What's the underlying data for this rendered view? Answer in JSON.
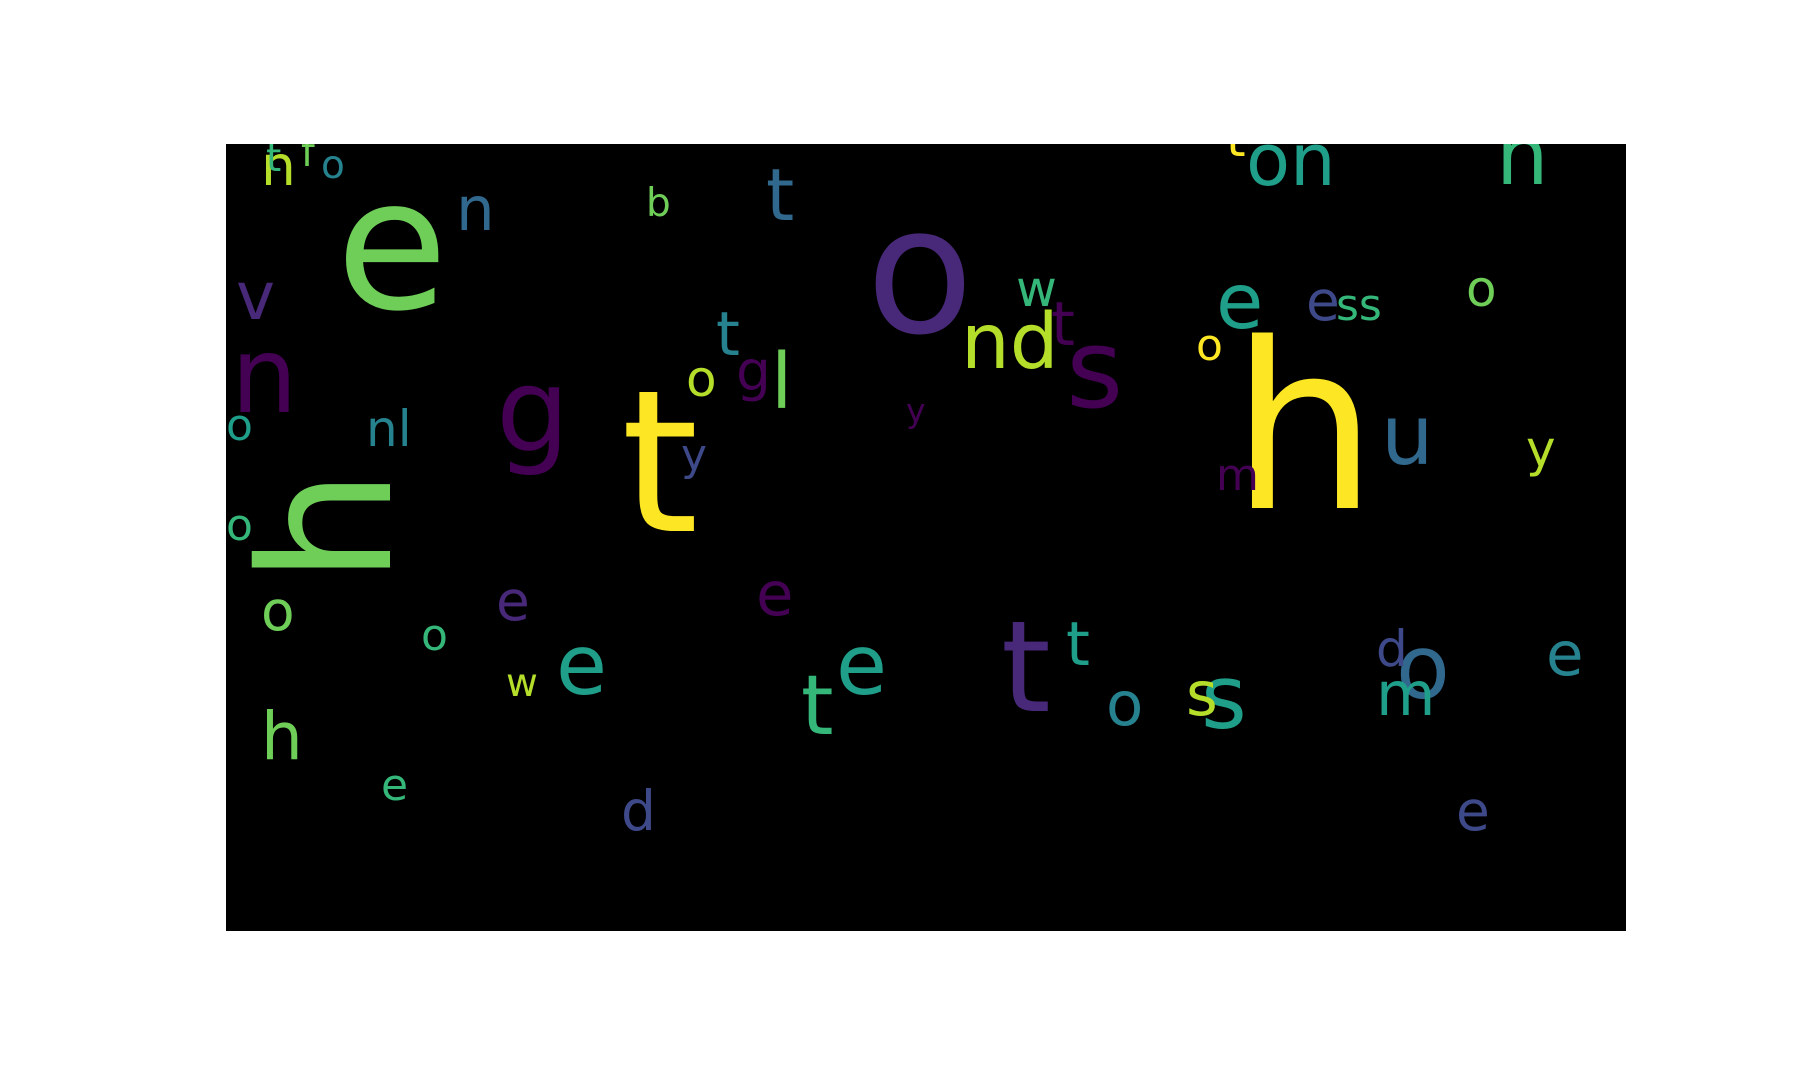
{
  "palette": {
    "background": "#000000",
    "page": "#ffffff",
    "colors": [
      "#440154",
      "#482878",
      "#3e4989",
      "#31688e",
      "#26828e",
      "#1f9e89",
      "#35b779",
      "#6ece58",
      "#b5de2b",
      "#fde725"
    ]
  },
  "words": [
    {
      "t": "h",
      "c": 7,
      "rot": true
    },
    {
      "t": "e",
      "c": 7
    },
    {
      "t": "t",
      "c": 9
    },
    {
      "t": "o",
      "c": 1
    },
    {
      "t": "h",
      "c": 9
    },
    {
      "t": "t",
      "c": 1
    },
    {
      "t": "s",
      "c": 0
    },
    {
      "t": "g",
      "c": 0
    },
    {
      "t": "n",
      "c": 0
    },
    {
      "t": "e",
      "c": 5
    },
    {
      "t": "s",
      "c": 5
    },
    {
      "t": "o",
      "c": 3
    },
    {
      "t": "u",
      "c": 3
    },
    {
      "t": "e",
      "c": 5
    },
    {
      "t": "n",
      "c": 6
    },
    {
      "t": "on",
      "c": 5
    },
    {
      "t": "t",
      "c": 3
    },
    {
      "t": "n",
      "c": 8
    },
    {
      "t": "t",
      "c": 0
    },
    {
      "t": "nd",
      "c": 8
    },
    {
      "t": "e",
      "c": 2
    },
    {
      "t": "e",
      "c": 5
    },
    {
      "t": "l",
      "c": 7
    },
    {
      "t": "t",
      "c": 6
    },
    {
      "t": "e",
      "c": 4
    },
    {
      "t": "t",
      "c": 5
    },
    {
      "t": "o",
      "c": 4
    },
    {
      "t": "m",
      "c": 5
    },
    {
      "t": "n",
      "c": 3
    },
    {
      "t": "s",
      "c": 8
    },
    {
      "t": "d",
      "c": 2
    },
    {
      "t": "e",
      "c": 2
    },
    {
      "t": "e",
      "c": 0
    },
    {
      "t": "e",
      "c": 1
    },
    {
      "t": "g",
      "c": 0
    },
    {
      "t": "nl",
      "c": 4
    },
    {
      "t": "v",
      "c": 1
    },
    {
      "t": "t",
      "c": 4
    },
    {
      "t": "o",
      "c": 5
    },
    {
      "t": "o",
      "c": 6
    },
    {
      "t": "o",
      "c": 6
    },
    {
      "t": "e",
      "c": 6
    },
    {
      "t": "o",
      "c": 7
    },
    {
      "t": "w",
      "c": 8
    },
    {
      "t": "h",
      "c": 7
    },
    {
      "t": "f",
      "c": 7
    },
    {
      "t": "o",
      "c": 4
    },
    {
      "t": "t",
      "c": 6
    },
    {
      "t": "w",
      "c": 6
    },
    {
      "t": "m",
      "c": 0
    },
    {
      "t": "d",
      "c": 2
    },
    {
      "t": "ss",
      "c": 6
    },
    {
      "t": "y",
      "c": 8
    },
    {
      "t": "o",
      "c": 8
    },
    {
      "t": "y",
      "c": 2
    },
    {
      "t": "o",
      "c": 7
    },
    {
      "t": "t",
      "c": 9
    },
    {
      "t": "o",
      "c": 9
    },
    {
      "t": "b",
      "c": 7
    },
    {
      "t": "y",
      "c": 0
    }
  ]
}
